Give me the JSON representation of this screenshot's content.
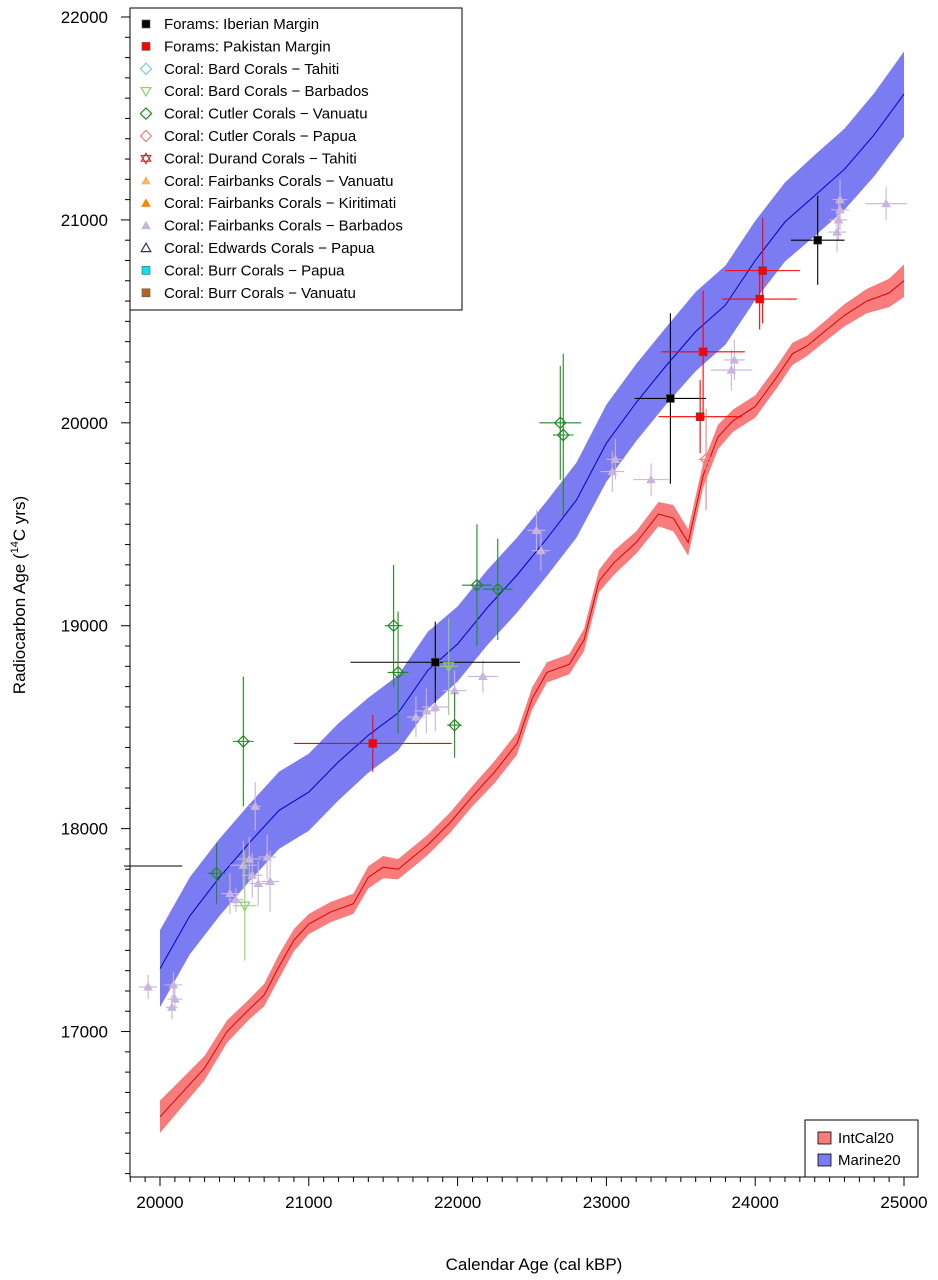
{
  "chart_data": {
    "type": "scatter",
    "xlabel": "Calendar Age (cal kBP)",
    "ylabel_prefix": "Radiocarbon Age (",
    "ylabel_sup": "14",
    "ylabel_suffix": "C yrs)",
    "xlim": [
      19800,
      25200
    ],
    "ylim": [
      16250,
      22100
    ],
    "x_ticks": [
      20000,
      21000,
      22000,
      23000,
      24000,
      25000
    ],
    "y_ticks": [
      17000,
      18000,
      19000,
      20000,
      21000,
      22000
    ],
    "grid": false,
    "legend_position": "top-left",
    "curve_legend_position": "bottom-right",
    "colors": {
      "intcal_band": "#f87c7c",
      "intcal_line": "#e00000",
      "marine_band": "#7b7bf2",
      "marine_line": "#0000cc"
    },
    "curves": [
      {
        "name": "IntCal20",
        "x": [
          20000,
          20150,
          20300,
          20450,
          20600,
          20700,
          20800,
          20900,
          21000,
          21150,
          21300,
          21400,
          21500,
          21600,
          21700,
          21800,
          21950,
          22100,
          22250,
          22400,
          22500,
          22600,
          22750,
          22850,
          22950,
          23050,
          23200,
          23350,
          23450,
          23550,
          23650,
          23750,
          23850,
          24000,
          24150,
          24250,
          24350,
          24450,
          24600,
          24750,
          24900,
          25000
        ],
        "y": [
          16580,
          16700,
          16820,
          17000,
          17110,
          17180,
          17320,
          17450,
          17530,
          17590,
          17630,
          17760,
          17810,
          17800,
          17860,
          17920,
          18030,
          18160,
          18280,
          18420,
          18640,
          18770,
          18810,
          18930,
          19220,
          19310,
          19410,
          19550,
          19530,
          19410,
          19740,
          19930,
          20010,
          20080,
          20230,
          20340,
          20380,
          20440,
          20530,
          20600,
          20640,
          20700
        ],
        "half_width": [
          80,
          70,
          60,
          55,
          50,
          55,
          60,
          55,
          50,
          50,
          50,
          55,
          55,
          50,
          50,
          50,
          50,
          50,
          55,
          55,
          55,
          50,
          50,
          55,
          55,
          60,
          55,
          60,
          65,
          65,
          60,
          60,
          55,
          55,
          55,
          55,
          50,
          50,
          55,
          60,
          70,
          80
        ]
      },
      {
        "name": "Marine20",
        "x": [
          20000,
          20200,
          20400,
          20600,
          20800,
          21000,
          21200,
          21400,
          21600,
          21800,
          22000,
          22200,
          22400,
          22600,
          22800,
          23000,
          23200,
          23400,
          23600,
          23800,
          24000,
          24200,
          24400,
          24600,
          24800,
          25000
        ],
        "y": [
          17310,
          17570,
          17760,
          17930,
          18090,
          18180,
          18330,
          18460,
          18570,
          18780,
          18910,
          19090,
          19250,
          19430,
          19620,
          19900,
          20100,
          20280,
          20450,
          20580,
          20800,
          20990,
          21120,
          21250,
          21420,
          21620
        ],
        "half_width": [
          190,
          190,
          190,
          190,
          190,
          190,
          190,
          185,
          185,
          190,
          185,
          185,
          185,
          185,
          185,
          190,
          190,
          190,
          195,
          195,
          195,
          195,
          200,
          200,
          205,
          210
        ]
      }
    ],
    "series": [
      {
        "name": "Forams: Iberian Margin",
        "marker": "square",
        "color": "#000000",
        "points": [
          {
            "x": 21850,
            "y": 18820,
            "xerr": 570,
            "yerr": 200
          },
          {
            "x": 23430,
            "y": 20120,
            "xerr": 240,
            "yerr": 420
          },
          {
            "x": 24420,
            "y": 20900,
            "xerr": 180,
            "yerr": 220
          }
        ]
      },
      {
        "name": "Forams: Pakistan Margin",
        "marker": "square",
        "color": "#ff0000",
        "points": [
          {
            "x": 21430,
            "y": 18420,
            "xerr": 530,
            "yerr": 140
          },
          {
            "x": 23630,
            "y": 20030,
            "xerr": 280,
            "yerr": 180
          },
          {
            "x": 23650,
            "y": 20350,
            "xerr": 280,
            "yerr": 300
          },
          {
            "x": 24030,
            "y": 20610,
            "xerr": 250,
            "yerr": 150
          },
          {
            "x": 24050,
            "y": 20750,
            "xerr": 250,
            "yerr": 260
          }
        ]
      },
      {
        "name": "Coral: Bard Corals − Tahiti",
        "marker": "diamond-open",
        "color": "#7ec8e3",
        "points": []
      },
      {
        "name": "Coral: Bard Corals − Barbados",
        "marker": "triangle-down-open",
        "color": "#8fd16b",
        "points": [
          {
            "x": 20570,
            "y": 17620,
            "xerr": 80,
            "yerr": 270
          },
          {
            "x": 21940,
            "y": 18800,
            "xerr": 60,
            "yerr": 240
          }
        ]
      },
      {
        "name": "Coral: Cutler Corals − Vanuatu",
        "marker": "diamond-open",
        "color": "#1f8a1f",
        "points": [
          {
            "x": 20380,
            "y": 17780,
            "xerr": 60,
            "yerr": 150
          },
          {
            "x": 20560,
            "y": 18430,
            "xerr": 70,
            "yerr": 320
          },
          {
            "x": 21570,
            "y": 19000,
            "xerr": 60,
            "yerr": 300
          },
          {
            "x": 21600,
            "y": 18770,
            "xerr": 70,
            "yerr": 300
          },
          {
            "x": 21980,
            "y": 18510,
            "xerr": 50,
            "yerr": 160
          },
          {
            "x": 22130,
            "y": 19200,
            "xerr": 100,
            "yerr": 300
          },
          {
            "x": 22270,
            "y": 19180,
            "xerr": 100,
            "yerr": 250
          },
          {
            "x": 22690,
            "y": 20000,
            "xerr": 140,
            "yerr": 280
          },
          {
            "x": 22710,
            "y": 19940,
            "xerr": 70,
            "yerr": 400
          }
        ]
      },
      {
        "name": "Coral: Cutler Corals − Papua",
        "marker": "diamond-open",
        "color": "#f08080",
        "points": [
          {
            "x": 23670,
            "y": 19820,
            "xerr": 50,
            "yerr": 250
          }
        ]
      },
      {
        "name": "Coral: Durand Corals − Tahiti",
        "marker": "star-open",
        "color": "#cc2a2a",
        "points": []
      },
      {
        "name": "Coral: Fairbanks Corals − Vanuatu",
        "marker": "triangle",
        "color": "#f7b56b",
        "points": []
      },
      {
        "name": "Coral: Fairbanks Corals − Kiritimati",
        "marker": "triangle",
        "color": "#ff7f00",
        "points": []
      },
      {
        "name": "Coral: Fairbanks Corals − Barbados",
        "marker": "triangle",
        "color": "#c8b4dc",
        "points": [
          {
            "x": 19920,
            "y": 17220,
            "xerr": 60,
            "yerr": 60
          },
          {
            "x": 20090,
            "y": 17230,
            "xerr": 60,
            "yerr": 60
          },
          {
            "x": 20100,
            "y": 17160,
            "xerr": 50,
            "yerr": 60
          },
          {
            "x": 20080,
            "y": 17120,
            "xerr": 40,
            "yerr": 60
          },
          {
            "x": 20470,
            "y": 17680,
            "xerr": 60,
            "yerr": 100
          },
          {
            "x": 20510,
            "y": 17650,
            "xerr": 50,
            "yerr": 60
          },
          {
            "x": 20560,
            "y": 17820,
            "xerr": 90,
            "yerr": 120
          },
          {
            "x": 20600,
            "y": 17850,
            "xerr": 80,
            "yerr": 110
          },
          {
            "x": 20620,
            "y": 17770,
            "xerr": 70,
            "yerr": 110
          },
          {
            "x": 20640,
            "y": 18110,
            "xerr": 40,
            "yerr": 120
          },
          {
            "x": 20660,
            "y": 17730,
            "xerr": 60,
            "yerr": 110
          },
          {
            "x": 20720,
            "y": 17860,
            "xerr": 60,
            "yerr": 110
          },
          {
            "x": 20740,
            "y": 17740,
            "xerr": 60,
            "yerr": 150
          },
          {
            "x": 21720,
            "y": 18550,
            "xerr": 60,
            "yerr": 100
          },
          {
            "x": 21790,
            "y": 18580,
            "xerr": 80,
            "yerr": 110
          },
          {
            "x": 21850,
            "y": 18600,
            "xerr": 90,
            "yerr": 120
          },
          {
            "x": 21980,
            "y": 18680,
            "xerr": 80,
            "yerr": 100
          },
          {
            "x": 22170,
            "y": 18750,
            "xerr": 100,
            "yerr": 80
          },
          {
            "x": 22530,
            "y": 19470,
            "xerr": 60,
            "yerr": 100
          },
          {
            "x": 22560,
            "y": 19370,
            "xerr": 60,
            "yerr": 100
          },
          {
            "x": 23040,
            "y": 19760,
            "xerr": 80,
            "yerr": 100
          },
          {
            "x": 23060,
            "y": 19820,
            "xerr": 60,
            "yerr": 100
          },
          {
            "x": 23300,
            "y": 19720,
            "xerr": 120,
            "yerr": 80
          },
          {
            "x": 23840,
            "y": 20260,
            "xerr": 140,
            "yerr": 100
          },
          {
            "x": 23860,
            "y": 20310,
            "xerr": 70,
            "yerr": 100
          },
          {
            "x": 24550,
            "y": 20940,
            "xerr": 60,
            "yerr": 100
          },
          {
            "x": 24560,
            "y": 21000,
            "xerr": 60,
            "yerr": 100
          },
          {
            "x": 24570,
            "y": 21050,
            "xerr": 60,
            "yerr": 100
          },
          {
            "x": 24570,
            "y": 21100,
            "xerr": 50,
            "yerr": 100
          },
          {
            "x": 24880,
            "y": 21080,
            "xerr": 140,
            "yerr": 80
          }
        ]
      },
      {
        "name": "Coral: Edwards Corals − Papua",
        "marker": "triangle-open",
        "color": "#3c2a57",
        "points": []
      },
      {
        "name": "Coral: Burr Corals − Papua",
        "marker": "square",
        "color": "#00e5ee",
        "points": []
      },
      {
        "name": "Coral: Burr Corals − Vanuatu",
        "marker": "square",
        "color": "#b5651d",
        "points": []
      }
    ]
  }
}
